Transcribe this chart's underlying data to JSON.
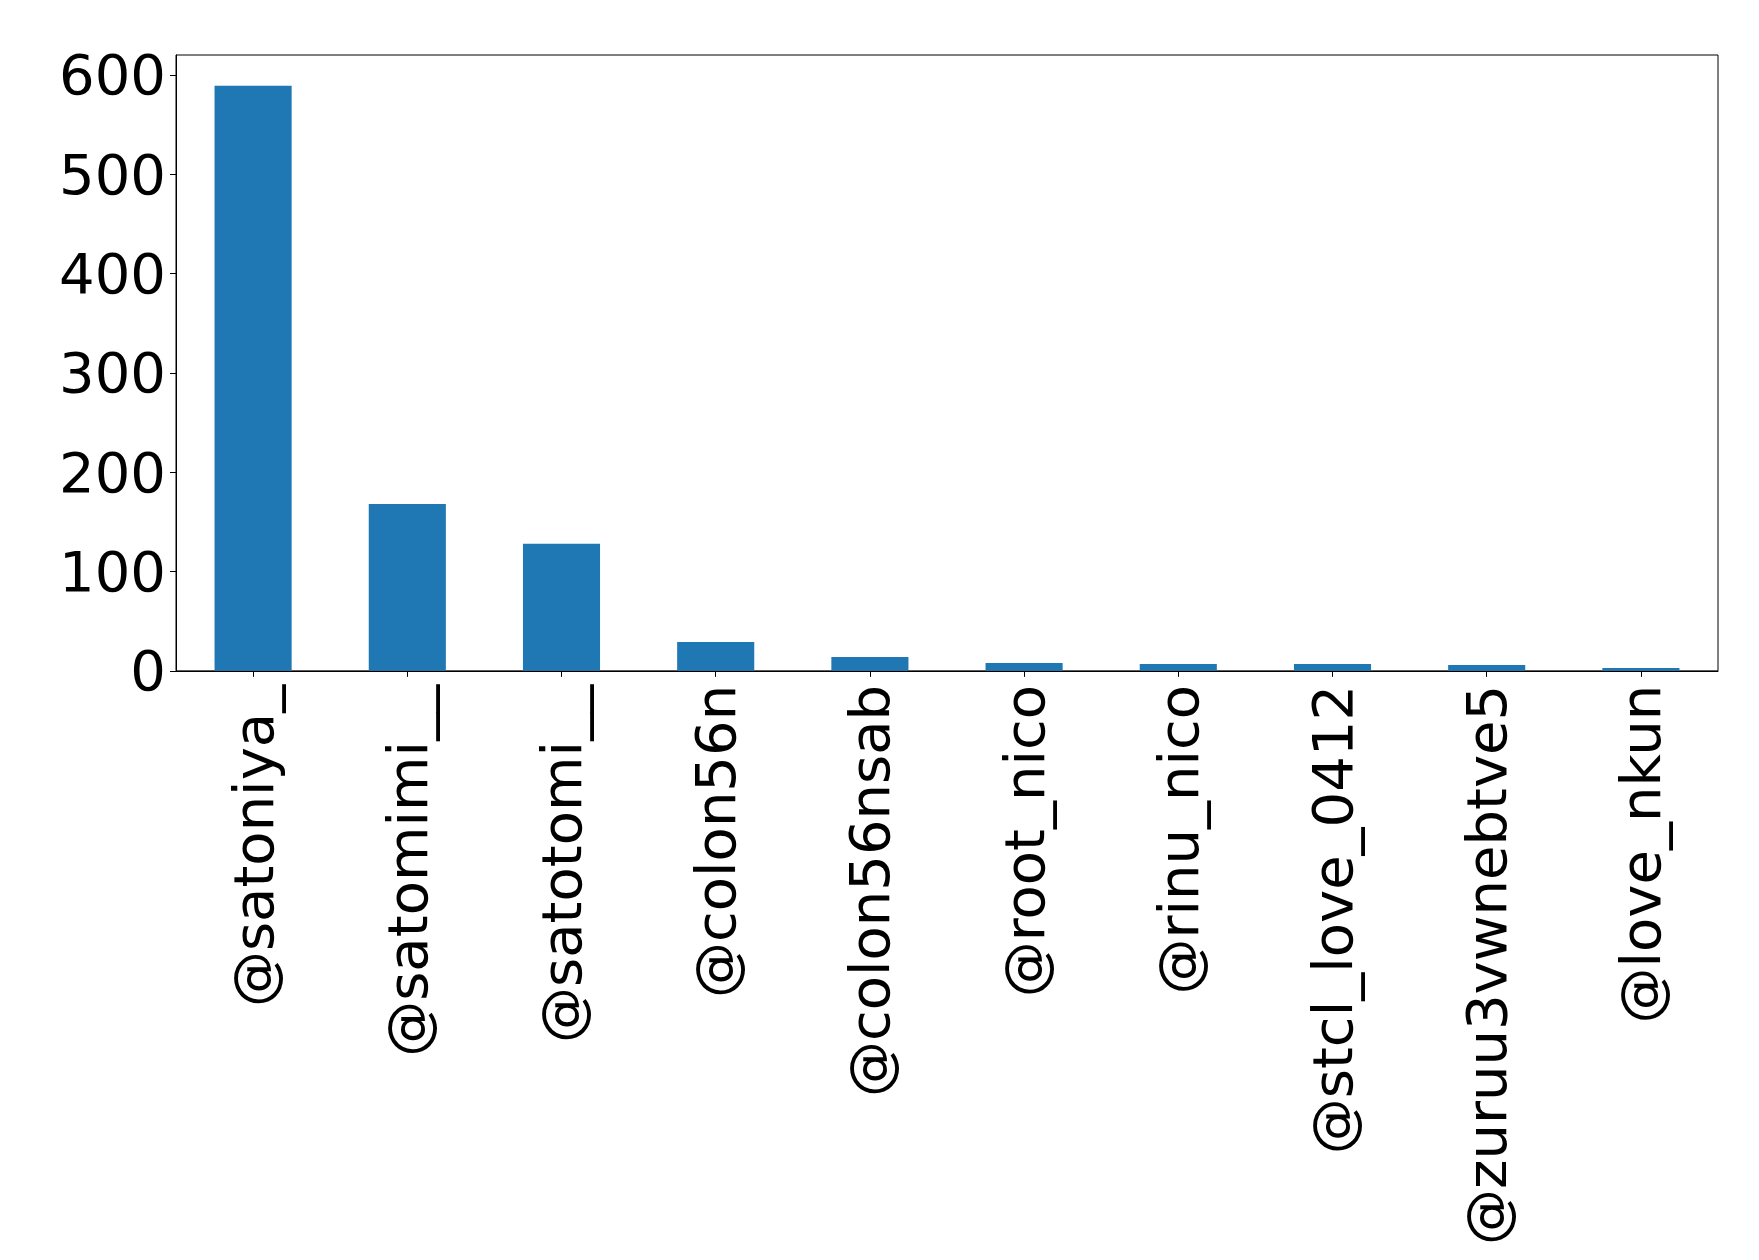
{
  "chart_data": {
    "type": "bar",
    "categories": [
      "@satoniya_",
      "@satomimi__",
      "@satotomi__",
      "@colon56n",
      "@colon56nsab",
      "@root_nico",
      "@rinu_nico",
      "@stcl_love_0412",
      "@zuruu3vwnebtve5",
      "@love_nkun"
    ],
    "values": [
      589,
      168,
      128,
      29,
      14,
      8,
      7,
      7,
      6,
      3
    ],
    "color": "#1f77b4",
    "ylim": [
      0,
      620
    ],
    "yticks": [
      0,
      100,
      200,
      300,
      400,
      500,
      600
    ],
    "grid": false
  }
}
